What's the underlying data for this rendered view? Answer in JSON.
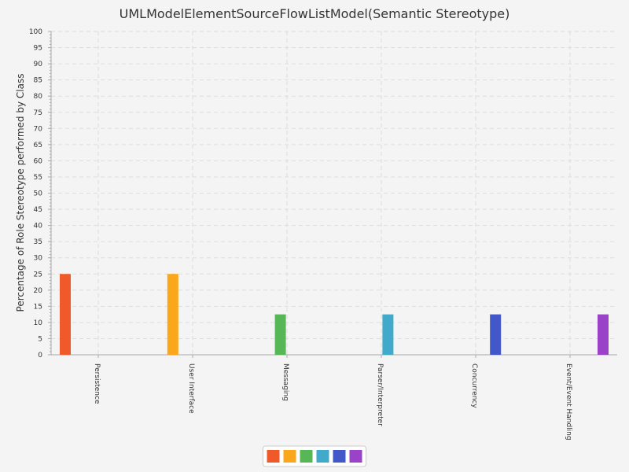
{
  "chart_data": {
    "type": "bar",
    "title": "UMLModelElementSourceFlowListModel(Semantic Stereotype)",
    "xlabel": "",
    "ylabel": "Percentage of Role Stereotype performed by Class",
    "ylim": [
      0,
      100
    ],
    "ytick_step": 5,
    "grid": true,
    "legend_position": "bottom",
    "categories": [
      "Persistence",
      "User Interface",
      "Messaging",
      "Parser/Interpreter",
      "Concurrency",
      "Event/Event Handling"
    ],
    "series": [
      {
        "color": "#f0592a",
        "values": [
          25,
          0,
          0,
          0,
          0,
          0
        ]
      },
      {
        "color": "#fba71b",
        "values": [
          0,
          25,
          0,
          0,
          0,
          0
        ]
      },
      {
        "color": "#57b757",
        "values": [
          0,
          0,
          12.5,
          0,
          0,
          0
        ]
      },
      {
        "color": "#41a9c9",
        "values": [
          0,
          0,
          0,
          12.5,
          0,
          0
        ]
      },
      {
        "color": "#4258c9",
        "values": [
          0,
          0,
          0,
          0,
          12.5,
          0
        ]
      },
      {
        "color": "#9a42c8",
        "values": [
          0,
          0,
          0,
          0,
          0,
          12.5
        ]
      }
    ]
  }
}
